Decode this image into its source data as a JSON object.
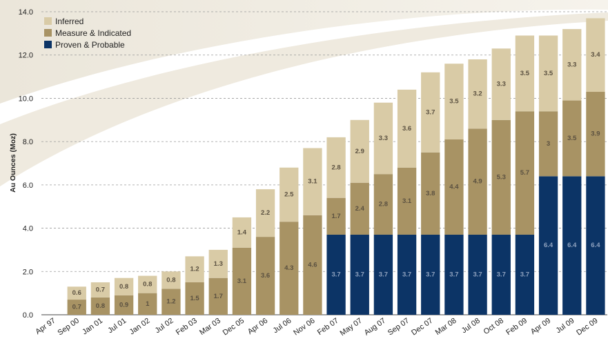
{
  "chart_data": {
    "type": "stacked_bar",
    "y_label": "Au Ounces (Moz)",
    "categories": [
      "Apr 97",
      "Sep 00",
      "Jan 01",
      "Jul 01",
      "Jan 02",
      "Jul 02",
      "Feb 03",
      "Mar 03",
      "Dec 05",
      "Apr 06",
      "Jul 06",
      "Nov 06",
      "Feb 07",
      "May 07",
      "Aug 07",
      "Sep 07",
      "Dec 07",
      "Mar 08",
      "Jul 08",
      "Oct 08",
      "Feb 09",
      "Apr 09",
      "Jul 09",
      "Dec 09"
    ],
    "series": [
      {
        "name": "Proven & Probable",
        "color": "#0c3466",
        "values": [
          null,
          null,
          null,
          null,
          null,
          null,
          null,
          null,
          null,
          null,
          null,
          null,
          3.7,
          3.7,
          3.7,
          3.7,
          3.7,
          3.7,
          3.7,
          3.7,
          3.7,
          6.4,
          6.4,
          6.4
        ]
      },
      {
        "name": "Measure & Indicated",
        "color": "#a89364",
        "values": [
          null,
          0.7,
          0.8,
          0.9,
          1.0,
          1.2,
          1.5,
          1.7,
          3.1,
          3.6,
          4.3,
          4.6,
          1.7,
          2.4,
          2.8,
          3.1,
          3.8,
          4.4,
          4.9,
          5.3,
          5.7,
          3.0,
          3.5,
          3.9
        ]
      },
      {
        "name": "Inferred",
        "color": "#d9cba6",
        "values": [
          null,
          0.6,
          0.7,
          0.8,
          0.8,
          0.8,
          1.2,
          1.3,
          1.4,
          2.2,
          2.5,
          3.1,
          2.8,
          2.9,
          3.3,
          3.6,
          3.7,
          3.5,
          3.2,
          3.3,
          3.5,
          3.5,
          3.3,
          3.4
        ]
      }
    ],
    "ylim": [
      0,
      14
    ],
    "yticks": [
      {
        "value": 0,
        "label": "0.0"
      },
      {
        "value": 2,
        "label": "2.0"
      },
      {
        "value": 4,
        "label": "4.0"
      },
      {
        "value": 6,
        "label": "6.0"
      },
      {
        "value": 8,
        "label": "8.0"
      },
      {
        "value": 10,
        "label": "10.0"
      },
      {
        "value": 12,
        "label": "12.0"
      },
      {
        "value": 14,
        "label": "14.0"
      }
    ],
    "grid": true,
    "legend": "top-left"
  }
}
